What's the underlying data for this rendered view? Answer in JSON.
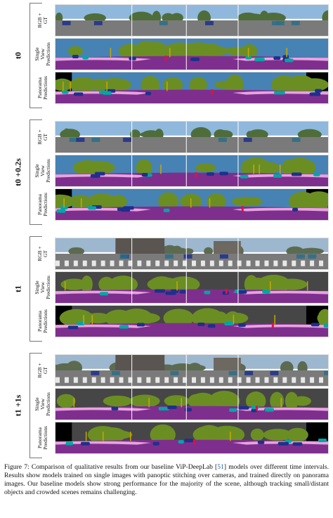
{
  "groups": [
    {
      "time_label": "t0",
      "rows": [
        {
          "label": "RGB + GT",
          "kind": "rgb",
          "scene": "sky"
        },
        {
          "label": "Single View\nPredictions",
          "kind": "single",
          "scene": "sky"
        },
        {
          "label": "Panorama\nPredictions",
          "kind": "pano",
          "scene": "sky"
        }
      ]
    },
    {
      "time_label": "t0 +0.2s",
      "rows": [
        {
          "label": "RGB + GT",
          "kind": "rgb",
          "scene": "sky"
        },
        {
          "label": "Single View\nPredictions",
          "kind": "single",
          "scene": "sky"
        },
        {
          "label": "Panorama\nPredictions",
          "kind": "pano",
          "scene": "sky"
        }
      ]
    },
    {
      "time_label": "t1",
      "rows": [
        {
          "label": "RGB + GT",
          "kind": "rgb",
          "scene": "city"
        },
        {
          "label": "Single View\nPredictions",
          "kind": "single",
          "scene": "city"
        },
        {
          "label": "Panorama\nPredictions",
          "kind": "pano",
          "scene": "city"
        }
      ]
    },
    {
      "time_label": "t1 +1s",
      "rows": [
        {
          "label": "RGB + GT",
          "kind": "rgb",
          "scene": "city"
        },
        {
          "label": "Single View\nPredictions",
          "kind": "single",
          "scene": "city"
        },
        {
          "label": "Panorama\nPredictions",
          "kind": "pano",
          "scene": "city"
        }
      ]
    }
  ],
  "caption": {
    "prefix": "Figure 7: Comparison of qualitative results from our baseline ViP-DeepLab [",
    "citation": "51",
    "suffix": "] models over different time intervals. Results show models trained on single images with panoptic stitching over cameras, and trained directly on panorama images. Our baseline models show strong performance for the majority of the scene, although tracking small/distant objects and crowded scenes remains challenging."
  },
  "colors": {
    "road": "#7e2f8e",
    "sidewalk": "#e9a3e0",
    "vegetation": "#6b8e23",
    "sky": "#4682b4",
    "building": "#464646",
    "car": "#1f2f8c",
    "car_alt": "#00a6a6",
    "pole": "#c8a800",
    "person": "#dc143c",
    "rgb_sky": "#8fb8dc",
    "rgb_road": "#7a7a7a"
  }
}
